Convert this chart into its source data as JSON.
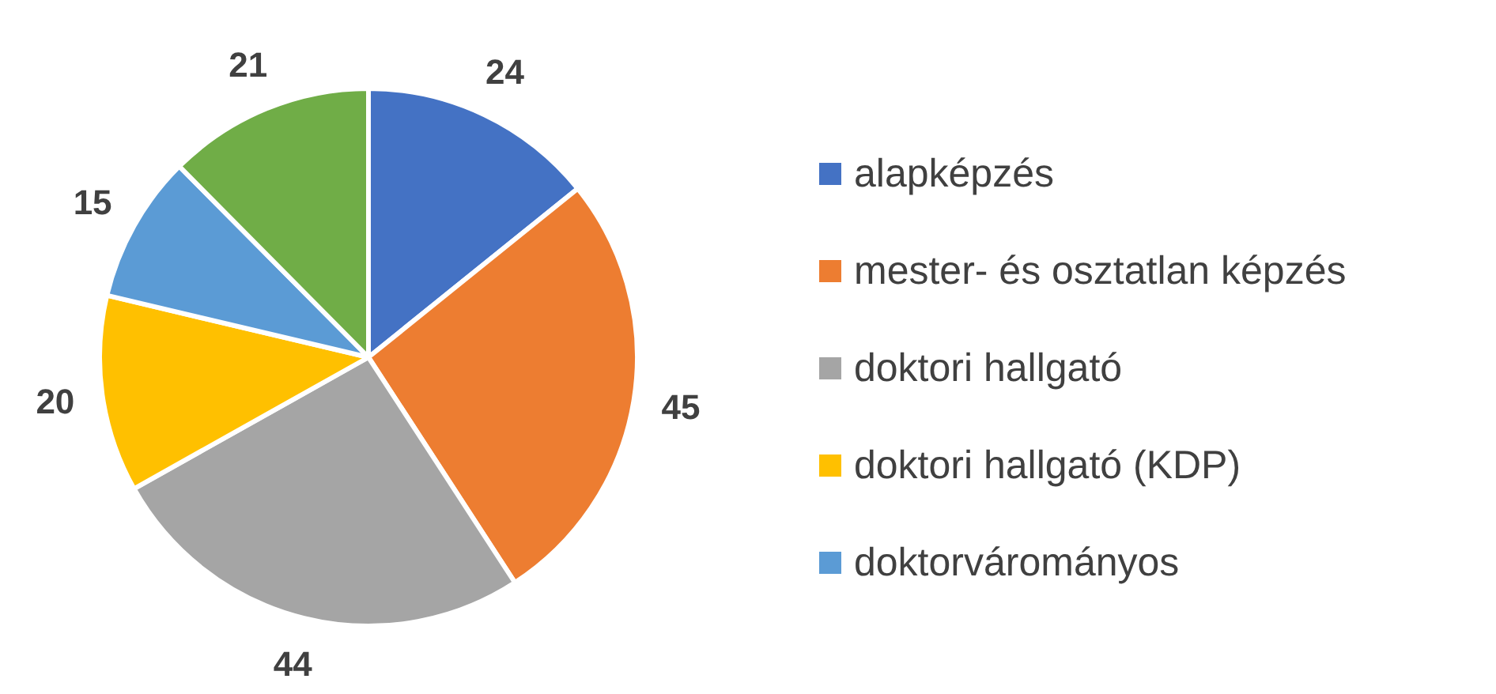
{
  "chart_data": {
    "type": "pie",
    "categories": [
      "alapképzés",
      "mester- és osztatlan képzés",
      "doktori hallgató",
      "doktori hallgató (KDP)",
      "doktorvárományos",
      null
    ],
    "values": [
      24,
      45,
      44,
      20,
      15,
      21
    ],
    "colors": [
      "#4472c4",
      "#ed7d31",
      "#a5a5a5",
      "#ffc000",
      "#5b9bd5",
      "#70ad47"
    ],
    "data_labels": true,
    "legend": "right"
  }
}
